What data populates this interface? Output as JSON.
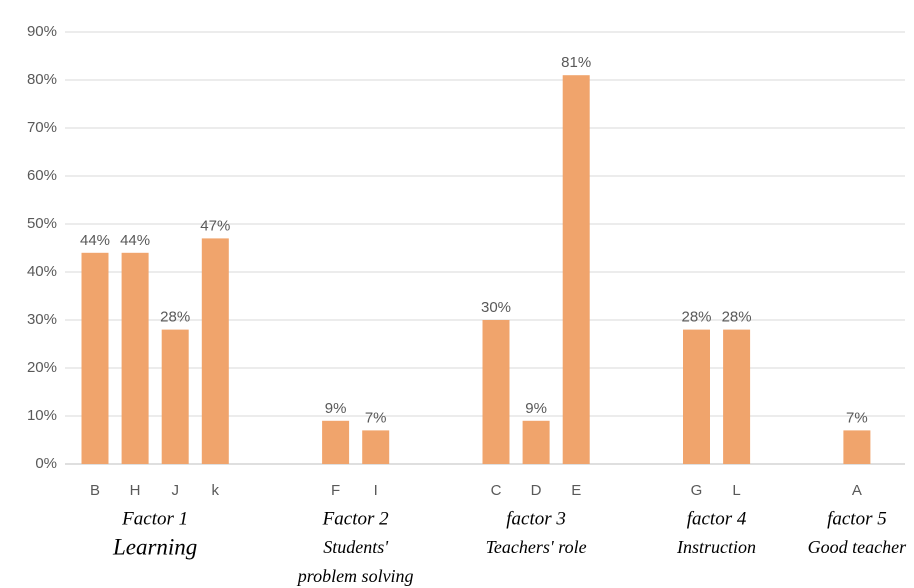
{
  "chart_data": {
    "type": "bar",
    "categories": [
      "B",
      "H",
      "J",
      "k",
      null,
      null,
      "F",
      "I",
      null,
      null,
      "C",
      "D",
      "E",
      null,
      null,
      "G",
      "L",
      null,
      null,
      "A"
    ],
    "values": [
      44,
      44,
      28,
      47,
      null,
      null,
      9,
      7,
      null,
      null,
      30,
      9,
      81,
      null,
      null,
      28,
      28,
      null,
      null,
      7
    ],
    "value_labels": [
      "44%",
      "44%",
      "28%",
      "47%",
      null,
      null,
      "9%",
      "7%",
      null,
      null,
      "30%",
      "9%",
      "81%",
      null,
      null,
      "28%",
      "28%",
      null,
      null,
      "7%"
    ],
    "groups": [
      {
        "lines": [
          "Factor 1",
          "Learning"
        ]
      },
      {
        "lines": [
          "Factor 2",
          "Students'",
          "problem solving"
        ]
      },
      {
        "lines": [
          "factor 3",
          "Teachers' role"
        ]
      },
      {
        "lines": [
          "factor 4",
          "Instruction"
        ]
      },
      {
        "lines": [
          "factor 5",
          "Good teacher"
        ]
      }
    ],
    "color": "#f0a46c",
    "ylim": [
      0,
      90
    ],
    "yticks": [
      {
        "value": 0,
        "label": "0%"
      },
      {
        "value": 10,
        "label": "10%"
      },
      {
        "value": 20,
        "label": "20%"
      },
      {
        "value": 30,
        "label": "30%"
      },
      {
        "value": 40,
        "label": "40%"
      },
      {
        "value": 50,
        "label": "50%"
      },
      {
        "value": 60,
        "label": "60%"
      },
      {
        "value": 70,
        "label": "70%"
      },
      {
        "value": 80,
        "label": "80%"
      },
      {
        "value": 90,
        "label": "90%"
      }
    ],
    "grid": true
  }
}
